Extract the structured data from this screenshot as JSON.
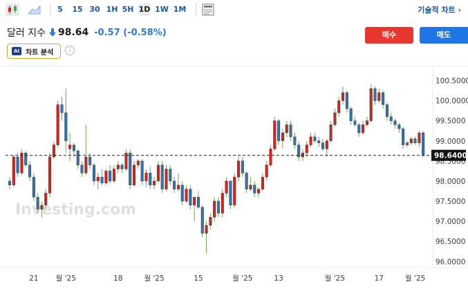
{
  "toolbar": {
    "intervals": [
      {
        "label": "5",
        "active": false
      },
      {
        "label": "15",
        "active": false
      },
      {
        "label": "30",
        "active": false
      },
      {
        "label": "1H",
        "active": false
      },
      {
        "label": "5H",
        "active": false
      },
      {
        "label": "1D",
        "active": true
      },
      {
        "label": "1W",
        "active": false
      },
      {
        "label": "1M",
        "active": false
      }
    ],
    "tech_chart_label": "기술적 차트 ›",
    "icons": [
      "candlestick-icon",
      "area-chart-icon",
      "news-icon"
    ]
  },
  "header": {
    "title": "달러 지수",
    "price": "98.64",
    "change": "-0.57 (-0.58%)",
    "buy_label": "매수",
    "sell_label": "매도",
    "ai_badge": "AI",
    "ai_label": "차트 분석",
    "info_symbol": "i"
  },
  "colors": {
    "up": "#d0261f",
    "down": "#3573ad",
    "buy": "#e8372f",
    "sell": "#1d77e6"
  },
  "chart_data": {
    "type": "candlestick",
    "watermark": "Investing.com",
    "last_price_label": "98.6400",
    "last_price": 98.64,
    "ylim": [
      95.85,
      100.75
    ],
    "y_ticks": [
      "100.5000",
      "100.0000",
      "99.5000",
      "99.0000",
      "98.5000",
      "98.0000",
      "97.5000",
      "97.0000",
      "96.5000",
      "96.0000"
    ],
    "y_tick_values": [
      100.5,
      100.0,
      99.5,
      99.0,
      98.5,
      98.0,
      97.5,
      97.0,
      96.5,
      96.0
    ],
    "x_ticks": [
      {
        "label": "21",
        "index": 6
      },
      {
        "label": "월 '25",
        "index": 14
      },
      {
        "label": "18",
        "index": 27
      },
      {
        "label": "월 '25",
        "index": 36
      },
      {
        "label": "15",
        "index": 47
      },
      {
        "label": "월 '25",
        "index": 58
      },
      {
        "label": "13",
        "index": 67
      },
      {
        "label": "월 '25",
        "index": 81
      },
      {
        "label": "17",
        "index": 92
      },
      {
        "label": "월 '25",
        "index": 101
      }
    ],
    "candles": [
      [
        98.0,
        98.1,
        97.8,
        97.9
      ],
      [
        97.9,
        98.65,
        97.85,
        98.6
      ],
      [
        98.6,
        98.7,
        98.1,
        98.2
      ],
      [
        98.2,
        98.8,
        98.15,
        98.7
      ],
      [
        98.7,
        98.75,
        98.35,
        98.4
      ],
      [
        98.4,
        98.5,
        98.0,
        98.1
      ],
      [
        98.1,
        98.2,
        97.5,
        97.6
      ],
      [
        97.6,
        97.7,
        97.2,
        97.3
      ],
      [
        97.3,
        97.5,
        97.1,
        97.4
      ],
      [
        97.4,
        97.8,
        97.3,
        97.7
      ],
      [
        97.7,
        98.7,
        97.6,
        98.6
      ],
      [
        98.6,
        99.0,
        98.55,
        98.9
      ],
      [
        98.9,
        100.0,
        98.85,
        99.9
      ],
      [
        99.9,
        100.1,
        99.5,
        99.7
      ],
      [
        99.7,
        100.3,
        98.7,
        99.0
      ],
      [
        98.8,
        99.2,
        98.5,
        98.9
      ],
      [
        98.9,
        98.95,
        98.6,
        98.75
      ],
      [
        98.75,
        98.8,
        98.3,
        98.4
      ],
      [
        98.4,
        98.5,
        98.1,
        98.2
      ],
      [
        98.2,
        99.4,
        98.15,
        98.6
      ],
      [
        98.6,
        98.7,
        98.3,
        98.4
      ],
      [
        98.4,
        98.45,
        97.9,
        98.0
      ],
      [
        98.0,
        98.2,
        97.8,
        98.1
      ],
      [
        98.1,
        98.3,
        97.9,
        97.95
      ],
      [
        97.95,
        98.3,
        97.9,
        98.25
      ],
      [
        98.25,
        98.4,
        97.95,
        98.0
      ],
      [
        98.0,
        98.4,
        97.95,
        98.3
      ],
      [
        98.3,
        98.5,
        98.2,
        98.4
      ],
      [
        98.4,
        98.45,
        98.2,
        98.3
      ],
      [
        98.3,
        98.8,
        98.25,
        98.7
      ],
      [
        98.7,
        98.8,
        97.8,
        97.9
      ],
      [
        97.9,
        98.5,
        97.85,
        98.4
      ],
      [
        98.4,
        98.55,
        98.3,
        98.5
      ],
      [
        98.5,
        98.55,
        97.9,
        98.0
      ],
      [
        98.0,
        98.3,
        97.85,
        98.2
      ],
      [
        98.2,
        98.35,
        97.8,
        97.9
      ],
      [
        97.9,
        98.1,
        97.8,
        98.0
      ],
      [
        98.0,
        98.5,
        97.95,
        98.4
      ],
      [
        98.4,
        98.5,
        97.7,
        97.8
      ],
      [
        97.8,
        98.4,
        97.75,
        98.3
      ],
      [
        98.3,
        98.4,
        97.9,
        98.0
      ],
      [
        98.0,
        98.1,
        97.7,
        97.8
      ],
      [
        97.8,
        98.2,
        97.75,
        97.9
      ],
      [
        97.9,
        98.0,
        97.4,
        97.5
      ],
      [
        97.5,
        97.9,
        97.45,
        97.8
      ],
      [
        97.8,
        97.9,
        97.3,
        97.4
      ],
      [
        97.4,
        97.6,
        97.0,
        97.6
      ],
      [
        97.6,
        97.75,
        97.3,
        97.35
      ],
      [
        97.35,
        97.4,
        96.6,
        96.7
      ],
      [
        96.7,
        97.0,
        96.2,
        96.9
      ],
      [
        96.9,
        97.2,
        96.8,
        97.1
      ],
      [
        97.1,
        97.6,
        97.0,
        97.5
      ],
      [
        97.5,
        97.6,
        97.1,
        97.2
      ],
      [
        97.2,
        97.8,
        97.1,
        97.7
      ],
      [
        97.7,
        98.1,
        97.6,
        98.0
      ],
      [
        98.0,
        98.0,
        97.3,
        97.4
      ],
      [
        97.4,
        98.2,
        97.35,
        98.1
      ],
      [
        98.1,
        98.6,
        98.0,
        98.5
      ],
      [
        98.5,
        98.6,
        98.1,
        98.2
      ],
      [
        98.2,
        98.25,
        97.7,
        97.8
      ],
      [
        97.8,
        98.1,
        97.75,
        97.9
      ],
      [
        97.9,
        98.0,
        97.6,
        97.7
      ],
      [
        97.7,
        97.85,
        97.6,
        97.8
      ],
      [
        97.8,
        98.2,
        97.75,
        98.1
      ],
      [
        98.1,
        98.5,
        98.0,
        98.4
      ],
      [
        98.4,
        98.9,
        98.35,
        98.8
      ],
      [
        98.8,
        99.6,
        98.75,
        99.5
      ],
      [
        99.5,
        99.55,
        98.9,
        99.0
      ],
      [
        99.0,
        99.3,
        98.8,
        99.2
      ],
      [
        99.2,
        99.5,
        99.1,
        99.4
      ],
      [
        99.4,
        99.5,
        99.0,
        99.1
      ],
      [
        99.1,
        99.2,
        98.8,
        98.9
      ],
      [
        98.9,
        99.0,
        98.5,
        98.6
      ],
      [
        98.6,
        98.8,
        98.5,
        98.7
      ],
      [
        98.7,
        99.0,
        98.6,
        98.9
      ],
      [
        98.9,
        99.2,
        98.85,
        99.1
      ],
      [
        99.1,
        99.2,
        98.95,
        99.0
      ],
      [
        99.0,
        99.1,
        98.85,
        98.95
      ],
      [
        98.95,
        99.05,
        98.75,
        98.8
      ],
      [
        98.8,
        99.05,
        98.6,
        99.0
      ],
      [
        99.0,
        99.5,
        98.95,
        99.4
      ],
      [
        99.4,
        99.8,
        99.35,
        99.7
      ],
      [
        99.7,
        100.1,
        99.6,
        100.0
      ],
      [
        100.0,
        100.35,
        99.9,
        100.2
      ],
      [
        100.2,
        100.25,
        99.7,
        99.8
      ],
      [
        99.8,
        99.85,
        99.4,
        99.5
      ],
      [
        99.5,
        99.6,
        99.35,
        99.4
      ],
      [
        99.4,
        99.45,
        99.1,
        99.2
      ],
      [
        99.2,
        99.5,
        99.15,
        99.4
      ],
      [
        99.4,
        99.6,
        99.35,
        99.5
      ],
      [
        99.5,
        100.4,
        99.45,
        100.3
      ],
      [
        100.3,
        100.35,
        99.9,
        100.0
      ],
      [
        100.0,
        100.3,
        99.95,
        100.2
      ],
      [
        100.2,
        100.25,
        99.8,
        99.9
      ],
      [
        99.9,
        99.95,
        99.5,
        99.6
      ],
      [
        99.6,
        99.7,
        99.4,
        99.5
      ],
      [
        99.5,
        99.55,
        99.3,
        99.4
      ],
      [
        99.4,
        99.45,
        99.2,
        99.3
      ],
      [
        99.3,
        99.35,
        98.8,
        98.9
      ],
      [
        98.9,
        99.0,
        98.85,
        98.95
      ],
      [
        98.95,
        99.1,
        98.9,
        99.05
      ],
      [
        99.05,
        99.1,
        98.9,
        98.95
      ],
      [
        98.95,
        99.25,
        98.85,
        99.2
      ],
      [
        99.2,
        99.25,
        98.6,
        98.64
      ]
    ]
  }
}
